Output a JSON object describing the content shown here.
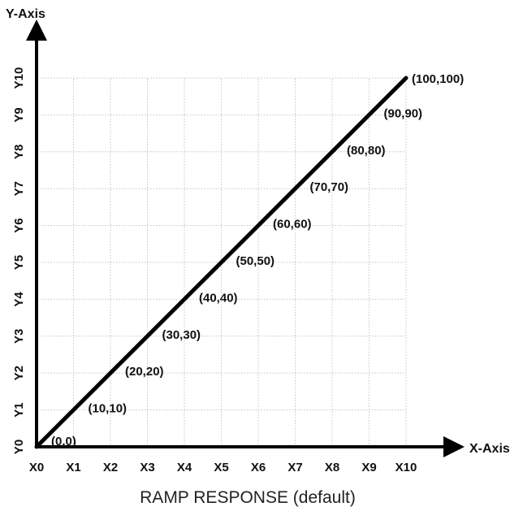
{
  "chart_data": {
    "type": "line",
    "title": "RAMP RESPONSE (default)",
    "xlabel": "X-Axis",
    "ylabel": "Y-Axis",
    "x_ticks": [
      "X0",
      "X1",
      "X2",
      "X3",
      "X4",
      "X5",
      "X6",
      "X7",
      "X8",
      "X9",
      "X10"
    ],
    "y_ticks": [
      "Y0",
      "Y1",
      "Y2",
      "Y3",
      "Y4",
      "Y5",
      "Y6",
      "Y7",
      "Y8",
      "Y9",
      "Y10"
    ],
    "xlim": [
      0,
      100
    ],
    "ylim": [
      0,
      100
    ],
    "grid": true,
    "series": [
      {
        "x": [
          0,
          10,
          20,
          30,
          40,
          50,
          60,
          70,
          80,
          90,
          100
        ],
        "y": [
          0,
          10,
          20,
          30,
          40,
          50,
          60,
          70,
          80,
          90,
          100
        ],
        "color": "#000000"
      }
    ],
    "point_labels": [
      "(0,0)",
      "(10,10)",
      "(20,20)",
      "(30,30)",
      "(40,40)",
      "(50,50)",
      "(60,60)",
      "(70,70)",
      "(80,80)",
      "(90,90)",
      "(100,100)"
    ]
  }
}
